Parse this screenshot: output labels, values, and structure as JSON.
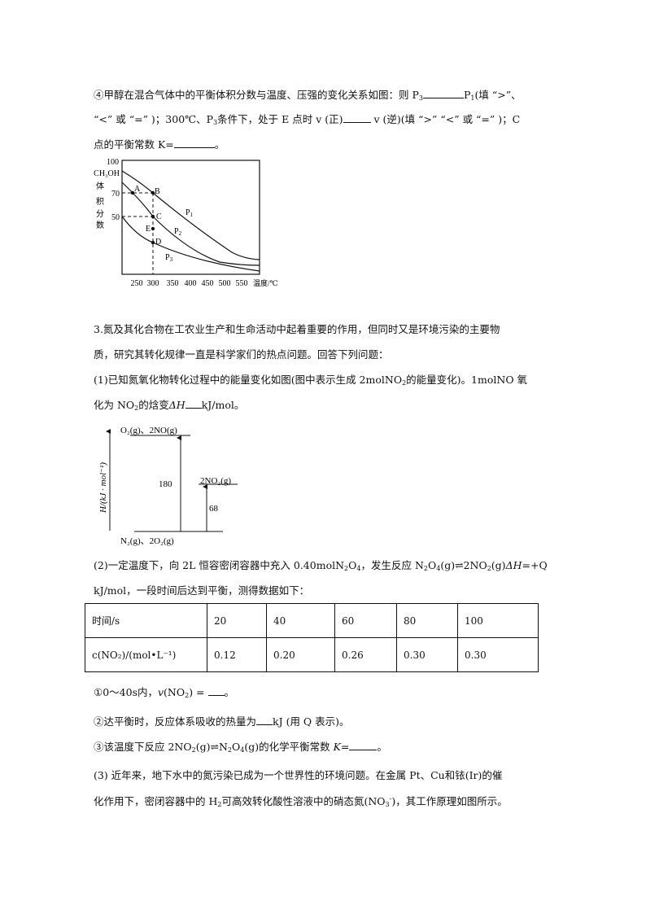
{
  "lines": {
    "q4_l1": [
      {
        "t": "④甲醇在混合气体中的平衡体积分数与温度、压强的变化关系如图：则 P"
      },
      {
        "sub": "3"
      },
      {
        "blank": "long"
      },
      {
        "t": "P"
      },
      {
        "sub": "1"
      },
      {
        "t": "(填 “>”、"
      }
    ],
    "q4_l2": [
      {
        "t": "“<” 或 “=” )；300℃、P"
      },
      {
        "sub": "3"
      },
      {
        "t": "条件下，处于 E 点时 v (正)"
      },
      {
        "blank": "mid"
      },
      {
        "t": " v (逆)(填 “>” “<” 或 “=” )；C"
      }
    ],
    "q4_l3": [
      {
        "t": "点的平衡常数 K="
      },
      {
        "blank": "long"
      },
      {
        "t": "。"
      }
    ],
    "s3_l1": [
      {
        "t": "3.氮及其化合物在工农业生产和生命活动中起着重要的作用，但同时又是环境污染的主要物"
      }
    ],
    "s3_l2": [
      {
        "t": "质，研究其转化规律一直是科学家们的热点问题。回答下列问题："
      }
    ],
    "s3_l3": [
      {
        "t": "(1)已知氮氧化物转化过程中的能量变化如图(图中表示生成 2molNO"
      },
      {
        "sub": "2"
      },
      {
        "t": "的能量变化)。1molNO 氧"
      }
    ],
    "s3_l4": [
      {
        "t": "化为 NO"
      },
      {
        "sub": "2"
      },
      {
        "t": "的焓变"
      },
      {
        "i": "ΔH"
      },
      {
        "blank": "short"
      },
      {
        "t": "kJ/mol。"
      }
    ],
    "p2_l1": [
      {
        "t": "(2)一定温度下，向 2L 恒容密闭容器中充入 0.40molN"
      },
      {
        "sub": "2"
      },
      {
        "t": "O"
      },
      {
        "sub": "4"
      },
      {
        "t": "，发生反应 N"
      },
      {
        "sub": "2"
      },
      {
        "t": "O"
      },
      {
        "sub": "4"
      },
      {
        "t": "(g)⇌2NO"
      },
      {
        "sub": "2"
      },
      {
        "t": "(g)"
      },
      {
        "i": "ΔH"
      },
      {
        "t": "=+Q"
      }
    ],
    "p2_l2": [
      {
        "t": "kJ/mol，一段时间后达到平衡，测得数据如下："
      }
    ],
    "a1": [
      {
        "t": "①0～40s内，"
      },
      {
        "i": "v"
      },
      {
        "t": "(NO"
      },
      {
        "sub": "2"
      },
      {
        "t": ") = "
      },
      {
        "blank": "short"
      },
      {
        "t": "。"
      }
    ],
    "a2": [
      {
        "t": "②达平衡时，反应体系吸收的热量为"
      },
      {
        "blank": "short"
      },
      {
        "t": "kJ (用 Q 表示)。"
      }
    ],
    "a3": [
      {
        "t": "③该温度下反应 2NO"
      },
      {
        "sub": "2"
      },
      {
        "t": "(g)⇌N"
      },
      {
        "sub": "2"
      },
      {
        "t": "O"
      },
      {
        "sub": "4"
      },
      {
        "t": "(g)的化学平衡常数 "
      },
      {
        "i": "K"
      },
      {
        "t": "="
      },
      {
        "blank": "mid"
      },
      {
        "t": "。"
      }
    ],
    "p3_l1": [
      {
        "t": "(3) 近年来，地下水中的氮污染已成为一个世界性的环境问题。在金属 Pt、Cu和铱(Ir)的催"
      }
    ],
    "p3_l2": [
      {
        "t": "化作用下，密闭容器中的 H"
      },
      {
        "sub": "2"
      },
      {
        "t": "可高效转化酸性溶液中的硝态氮(NO"
      },
      {
        "sub": "3"
      },
      {
        "sup": "-"
      },
      {
        "t": ")，其工作原理如图所示。"
      }
    ]
  },
  "graph1": {
    "y_top": "100",
    "y_label_1": "CH₃OH",
    "y_label_chars": [
      "体",
      "积",
      "分",
      "数"
    ],
    "y_ticks": [
      "70",
      "50"
    ],
    "x_ticks": [
      "250",
      "300",
      "350",
      "400",
      "450",
      "500",
      "550"
    ],
    "x_label": "温度/℃",
    "points": [
      "A",
      "B",
      "C",
      "E",
      "D"
    ],
    "curves": [
      "P",
      "P",
      "P"
    ],
    "curve_subs": [
      "1",
      "2",
      "3"
    ]
  },
  "graph2": {
    "y_label": "H/(kJ · mol⁻¹)",
    "top_level": "O₂(g)、2NO(g)",
    "mid_level": "2NO₂(g)",
    "bottom_level": "N₂(g)、2O₂(g)",
    "arrow1": "180",
    "arrow2": "68"
  },
  "table": {
    "header": [
      "时间/s",
      "20",
      "40",
      "60",
      "80",
      "100"
    ],
    "row": [
      "c(NO₂)/(mol•L⁻¹)",
      "0.12",
      "0.20",
      "0.26",
      "0.30",
      "0.30"
    ]
  }
}
